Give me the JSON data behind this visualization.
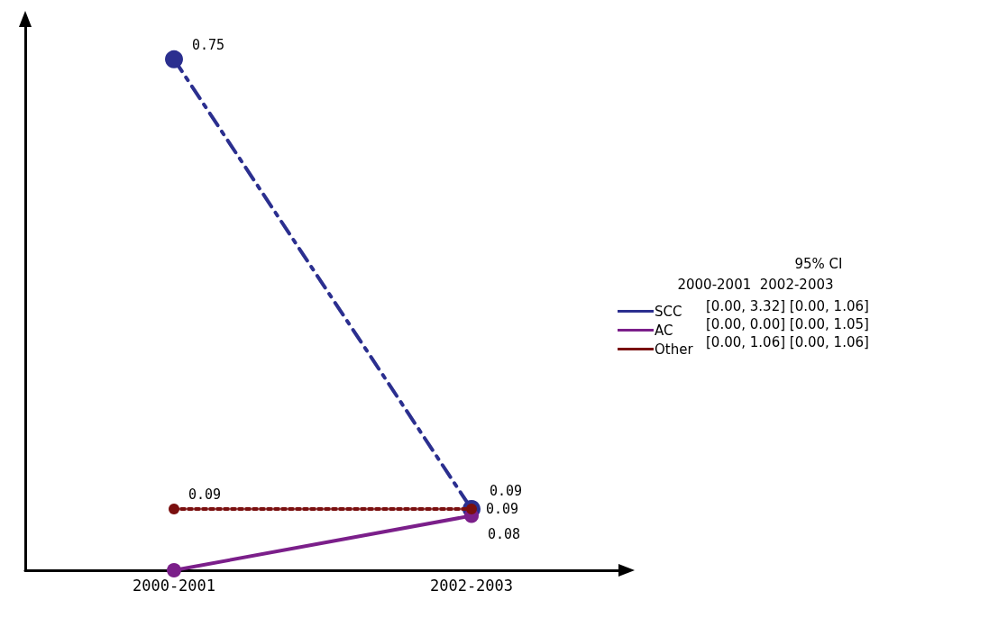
{
  "chart_data": {
    "type": "line",
    "categories": [
      "2000-2001",
      "2002-2003"
    ],
    "series": [
      {
        "name": "SCC",
        "color": "#2b2f8f",
        "line_style": "dashed",
        "values": [
          0.75,
          0.09
        ],
        "value_labels": [
          "0.75",
          "0.09"
        ]
      },
      {
        "name": "AC",
        "color": "#7b1f8a",
        "line_style": "solid",
        "values": [
          0,
          0.08
        ],
        "value_labels": [
          null,
          "0.08"
        ]
      },
      {
        "name": "Other",
        "color": "#7a0f0f",
        "line_style": "dotted",
        "values": [
          0.09,
          0.09
        ],
        "value_labels": [
          "0.09",
          "0.09"
        ]
      }
    ],
    "ylim": [
      0,
      0.8
    ],
    "tick_labels": "x",
    "grid": false,
    "legend": "right",
    "marker": "circle",
    "annotations": [
      "95% CI",
      "2000-2001  2002-2003",
      "[0.00, 3.32] [0.00, 1.06]",
      "[0.00, 0.00] [0.00, 1.05]",
      "[0.00, 1.06] [0.00, 1.06]"
    ]
  }
}
